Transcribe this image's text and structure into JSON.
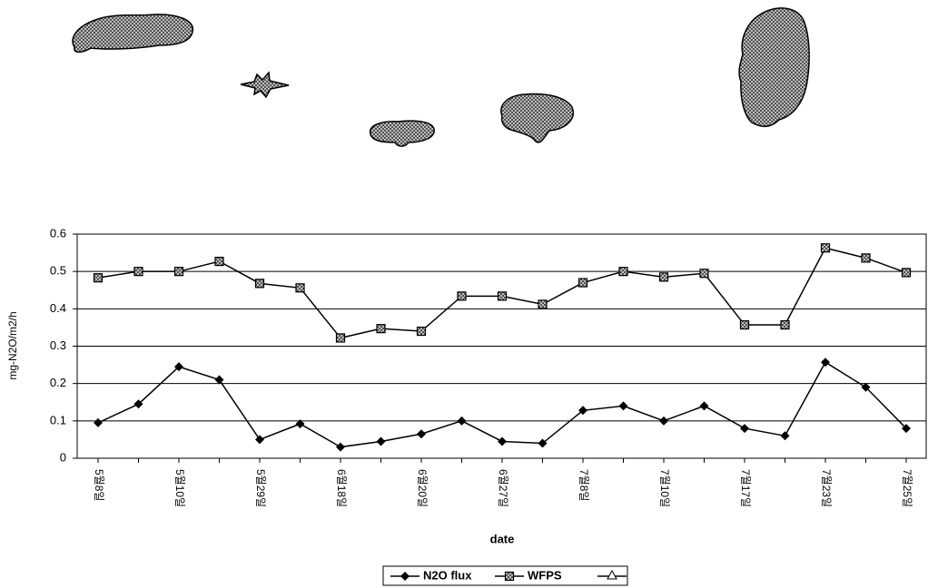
{
  "chart_data": {
    "type": "line",
    "categories": [
      "5월8일",
      null,
      "5월10일",
      null,
      "5월29일",
      null,
      "6월18일",
      null,
      "6월20일",
      null,
      "6월27일",
      null,
      "7월8일",
      null,
      "7월10일",
      null,
      "7월17일",
      null,
      "7월23일",
      null,
      "7월25일"
    ],
    "series": [
      {
        "name": "N2O flux",
        "color": "#000000",
        "marker": "diamond",
        "values": [
          0.095,
          0.145,
          0.245,
          0.21,
          0.05,
          0.092,
          0.03,
          0.045,
          0.065,
          0.1,
          0.045,
          0.04,
          0.128,
          0.14,
          0.1,
          0.14,
          0.08,
          0.06,
          0.257,
          0.19,
          0.08
        ]
      },
      {
        "name": "WFPS",
        "color": "#000000",
        "marker": "square",
        "values": [
          0.483,
          0.5,
          0.5,
          0.527,
          0.468,
          0.456,
          0.322,
          0.347,
          0.34,
          0.434,
          0.434,
          0.412,
          0.47,
          0.5,
          0.485,
          0.495,
          0.357,
          0.357,
          0.563,
          0.536,
          0.497
        ]
      }
    ],
    "x_label": "date",
    "y_label": "mg-N2O/m2/h",
    "ylim": [
      0,
      0.6
    ],
    "yticks": [
      0,
      0.1,
      0.2,
      0.3,
      0.4,
      0.5,
      0.6
    ],
    "grid": true
  }
}
